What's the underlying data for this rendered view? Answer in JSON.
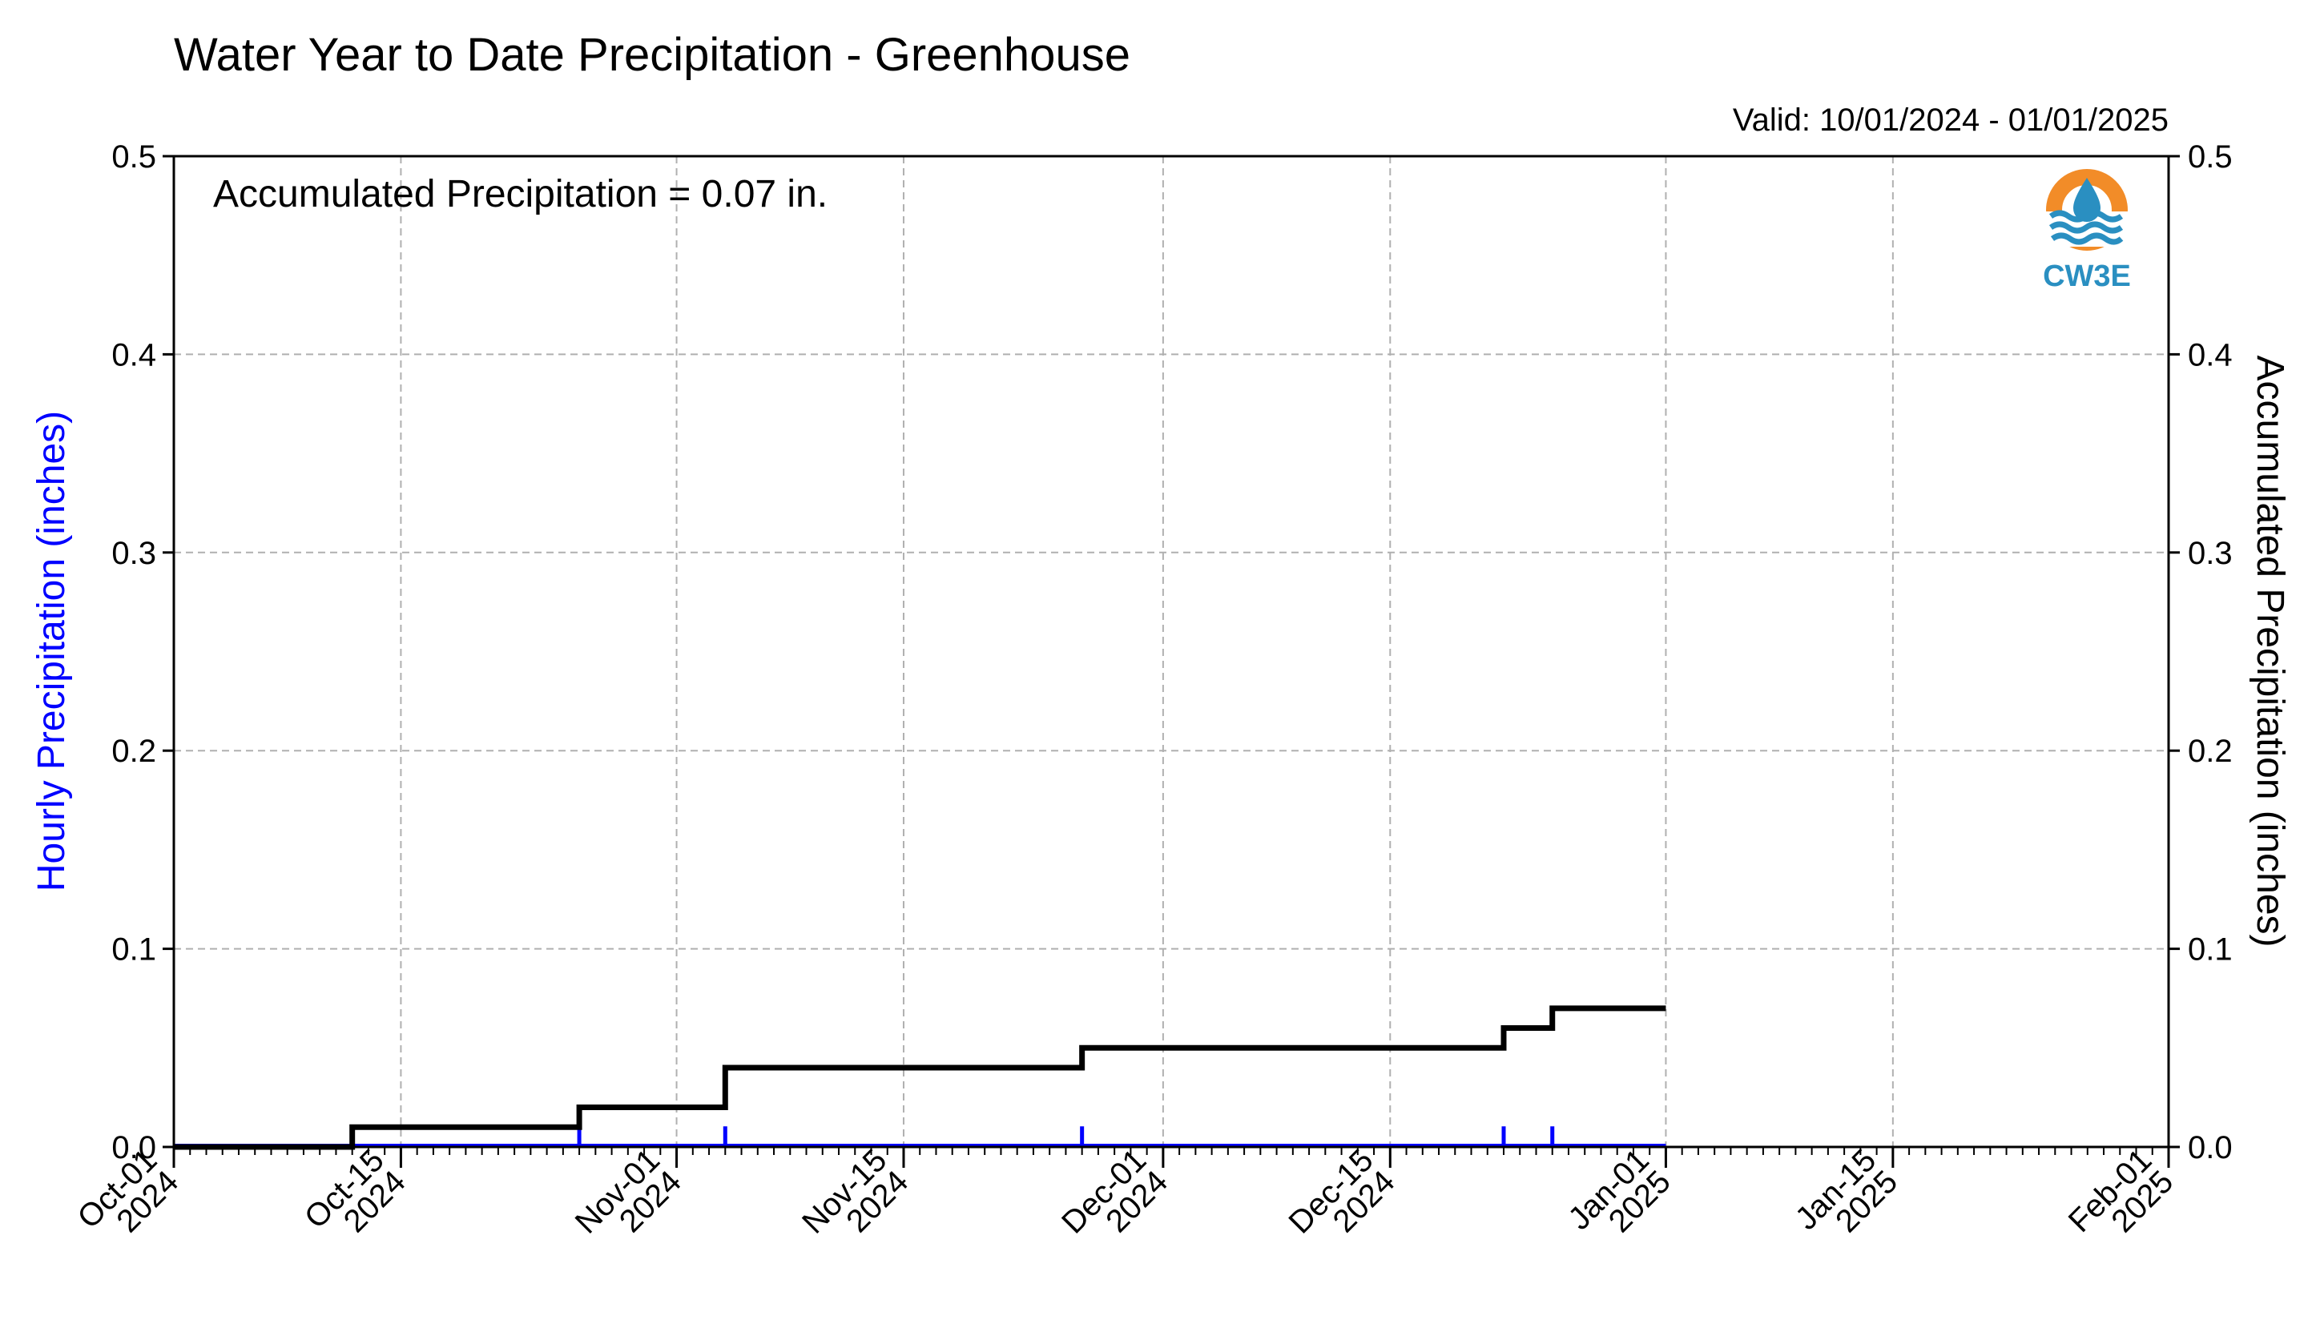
{
  "chart_data": {
    "type": "line",
    "title": "Water Year to Date Precipitation - Greenhouse",
    "subtitle": "Valid: 10/01/2024 - 01/01/2025",
    "annotation": "Accumulated Precipitation = 0.07 in.",
    "ylabel_left": "Hourly Precipitation (inches)",
    "ylabel_right": "Accumulated Precipitation (inches)",
    "logo_text": "CW3E",
    "xlim": [
      "2024-10-01",
      "2025-02-01"
    ],
    "ylim": [
      0,
      0.5
    ],
    "y_ticks": [
      "0.0",
      "0.1",
      "0.2",
      "0.3",
      "0.4",
      "0.5"
    ],
    "x_ticks": [
      {
        "date": "2024-10-01",
        "line1": "Oct-01",
        "line2": "2024"
      },
      {
        "date": "2024-10-15",
        "line1": "Oct-15",
        "line2": "2024"
      },
      {
        "date": "2024-11-01",
        "line1": "Nov-01",
        "line2": "2024"
      },
      {
        "date": "2024-11-15",
        "line1": "Nov-15",
        "line2": "2024"
      },
      {
        "date": "2024-12-01",
        "line1": "Dec-01",
        "line2": "2024"
      },
      {
        "date": "2024-12-15",
        "line1": "Dec-15",
        "line2": "2024"
      },
      {
        "date": "2025-01-01",
        "line1": "Jan-01",
        "line2": "2025"
      },
      {
        "date": "2025-01-15",
        "line1": "Jan-15",
        "line2": "2025"
      },
      {
        "date": "2025-02-01",
        "line1": "Feb-01",
        "line2": "2025"
      }
    ],
    "grid": true,
    "colors": {
      "hourly": "#0000ff",
      "accumulated": "#000000",
      "logo_orange": "#f28c28",
      "logo_blue": "#2a8fc1"
    },
    "series": [
      {
        "name": "Hourly Precipitation",
        "axis": "left",
        "style": "bars",
        "x": [
          "2024-10-12",
          "2024-10-26",
          "2024-11-04",
          "2024-11-26",
          "2024-12-22",
          "2024-12-25"
        ],
        "y": [
          0.01,
          0.01,
          0.01,
          0.01,
          0.01,
          0.01
        ]
      },
      {
        "name": "Accumulated Precipitation",
        "axis": "right",
        "style": "step",
        "x": [
          "2024-10-01",
          "2024-10-12",
          "2024-10-26",
          "2024-11-04",
          "2024-11-26",
          "2024-12-22",
          "2024-12-25",
          "2025-01-01"
        ],
        "y": [
          0.0,
          0.01,
          0.02,
          0.04,
          0.05,
          0.06,
          0.07,
          0.07
        ]
      }
    ]
  }
}
